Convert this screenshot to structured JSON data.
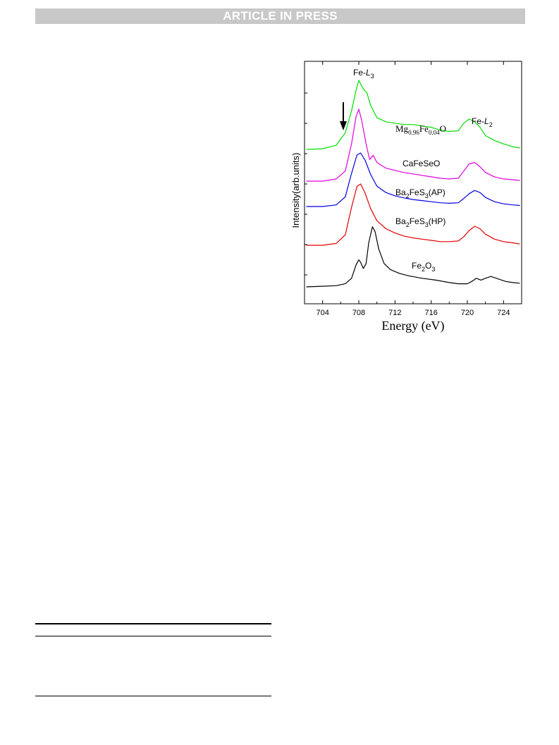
{
  "header": {
    "banner_text": "ARTICLE IN PRESS"
  },
  "chart_data": {
    "type": "line",
    "xlabel": "Energy (eV)",
    "ylabel": "Intensity(arb.units)",
    "xlim": [
      702,
      726
    ],
    "xticks": [
      704,
      708,
      712,
      716,
      720,
      724
    ],
    "grid": false,
    "annotations": {
      "l3": {
        "pre": "Fe-",
        "main": "L",
        "sub": "3"
      },
      "l2": {
        "pre": "Fe-",
        "main": "L",
        "sub": "2"
      }
    },
    "series": [
      {
        "name": "Mg0.96Fe0.04O",
        "label_parts": [
          "Mg",
          "0.96",
          "Fe",
          "0.04",
          "O"
        ],
        "color": "#00e000",
        "x": [
          702.2,
          704.0,
          705.5,
          706.5,
          707.2,
          707.7,
          708.0,
          708.3,
          708.6,
          708.9,
          709.3,
          710.0,
          711.0,
          712.0,
          713.0,
          714.0,
          715.0,
          716.0,
          717.0,
          718.0,
          719.0,
          719.6,
          720.2,
          720.8,
          721.4,
          722.0,
          723.0,
          724.0,
          725.0,
          725.8
        ],
        "y": [
          0.0,
          0.01,
          0.06,
          0.24,
          0.56,
          0.86,
          1.0,
          0.92,
          0.86,
          0.82,
          0.64,
          0.46,
          0.4,
          0.38,
          0.36,
          0.36,
          0.34,
          0.32,
          0.28,
          0.26,
          0.27,
          0.38,
          0.44,
          0.4,
          0.32,
          0.2,
          0.13,
          0.08,
          0.04,
          0.02
        ]
      },
      {
        "name": "CaFeSeO",
        "color": "#e000e0",
        "x": [
          702.2,
          704.0,
          705.5,
          706.5,
          707.2,
          707.7,
          708.0,
          708.3,
          708.8,
          709.2,
          709.6,
          710.0,
          711.0,
          712.0,
          713.0,
          714.0,
          715.0,
          716.0,
          717.0,
          718.0,
          719.0,
          719.6,
          720.2,
          720.8,
          721.4,
          722.0,
          723.0,
          724.0,
          725.0,
          725.8
        ],
        "y": [
          0.0,
          0.0,
          0.03,
          0.14,
          0.52,
          0.9,
          1.0,
          0.86,
          0.52,
          0.3,
          0.36,
          0.26,
          0.18,
          0.15,
          0.12,
          0.1,
          0.08,
          0.06,
          0.04,
          0.03,
          0.04,
          0.14,
          0.24,
          0.26,
          0.2,
          0.12,
          0.06,
          0.03,
          0.02,
          0.01
        ]
      },
      {
        "name": "Ba2FeS3(AP)",
        "label_parts": [
          "Ba",
          "2",
          "FeS",
          "3",
          "(AP)"
        ],
        "color": "#0000e0",
        "x": [
          702.2,
          704.0,
          705.5,
          706.5,
          707.2,
          707.8,
          708.2,
          708.7,
          709.3,
          710.0,
          711.0,
          712.0,
          713.0,
          714.0,
          715.0,
          716.0,
          717.0,
          718.0,
          719.0,
          719.6,
          720.2,
          720.8,
          721.4,
          722.0,
          723.0,
          724.0,
          725.0,
          725.8
        ],
        "y": [
          0.0,
          0.0,
          0.03,
          0.18,
          0.62,
          0.96,
          1.0,
          0.86,
          0.6,
          0.38,
          0.26,
          0.2,
          0.16,
          0.13,
          0.11,
          0.09,
          0.07,
          0.06,
          0.07,
          0.15,
          0.24,
          0.3,
          0.26,
          0.17,
          0.09,
          0.05,
          0.03,
          0.02
        ]
      },
      {
        "name": "Ba2FeS3(HP)",
        "label_parts": [
          "Ba",
          "2",
          "FeS",
          "3",
          "(HP)"
        ],
        "color": "#e00000",
        "x": [
          702.2,
          704.0,
          705.5,
          706.5,
          707.2,
          707.8,
          708.2,
          708.7,
          709.3,
          710.0,
          711.0,
          712.0,
          713.0,
          714.0,
          715.0,
          716.0,
          717.0,
          718.0,
          719.0,
          719.6,
          720.2,
          720.8,
          721.4,
          722.0,
          723.0,
          724.0,
          725.0,
          725.8
        ],
        "y": [
          0.0,
          0.0,
          0.03,
          0.17,
          0.62,
          0.96,
          1.0,
          0.85,
          0.6,
          0.4,
          0.27,
          0.2,
          0.15,
          0.12,
          0.1,
          0.08,
          0.06,
          0.06,
          0.07,
          0.14,
          0.24,
          0.31,
          0.27,
          0.18,
          0.1,
          0.06,
          0.04,
          0.02
        ]
      },
      {
        "name": "Fe2O3",
        "label_parts": [
          "Fe",
          "2",
          "O",
          "3"
        ],
        "color": "#000000",
        "x": [
          702.2,
          704.0,
          705.5,
          706.5,
          707.2,
          707.7,
          708.0,
          708.2,
          708.5,
          708.8,
          709.1,
          709.5,
          709.8,
          710.2,
          710.8,
          711.5,
          712.5,
          713.5,
          715.0,
          716.5,
          718.0,
          719.0,
          720.0,
          720.5,
          721.0,
          721.5,
          722.0,
          722.6,
          723.4,
          724.2,
          725.0,
          725.8
        ],
        "y": [
          0.0,
          0.01,
          0.02,
          0.05,
          0.14,
          0.36,
          0.44,
          0.4,
          0.3,
          0.38,
          0.72,
          0.98,
          0.9,
          0.62,
          0.38,
          0.28,
          0.22,
          0.18,
          0.14,
          0.11,
          0.07,
          0.05,
          0.05,
          0.09,
          0.14,
          0.11,
          0.14,
          0.17,
          0.13,
          0.09,
          0.07,
          0.06
        ]
      }
    ]
  }
}
